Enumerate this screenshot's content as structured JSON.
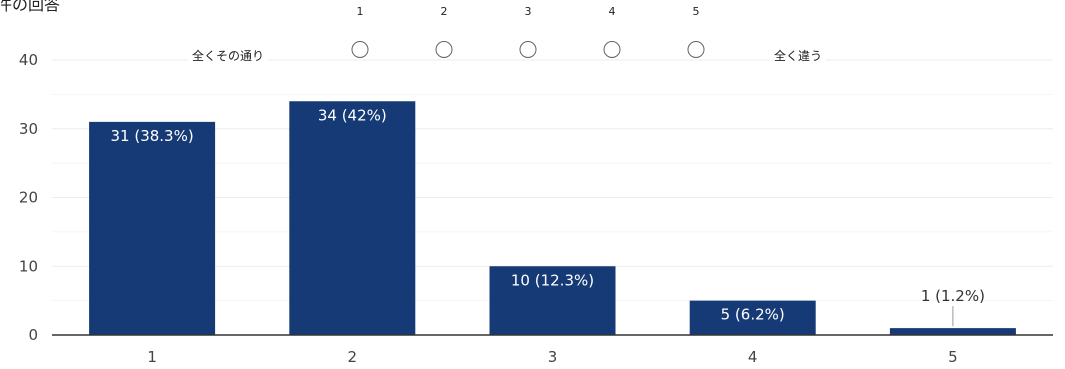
{
  "header": {
    "title": "件の回答"
  },
  "scale_question": {
    "left_label": "全くその通り",
    "right_label": "全く違う",
    "options": [
      "1",
      "2",
      "3",
      "4",
      "5"
    ]
  },
  "colors": {
    "bar": "#153a75",
    "grid": "#ececec",
    "axis": "#333333",
    "label_inside": "#ffffff",
    "label_outside": "#333333"
  },
  "chart_data": {
    "type": "bar",
    "categories": [
      "1",
      "2",
      "3",
      "4",
      "5"
    ],
    "values": [
      31,
      34,
      10,
      5,
      1
    ],
    "data_labels": [
      "31 (38.3%)",
      "34 (42%)",
      "10 (12.3%)",
      "5 (6.2%)",
      "1 (1.2%)"
    ],
    "ylim": [
      0,
      40
    ],
    "yticks": [
      0,
      10,
      20,
      30,
      40
    ],
    "grid": true,
    "title": "",
    "xlabel": "",
    "ylabel": ""
  }
}
